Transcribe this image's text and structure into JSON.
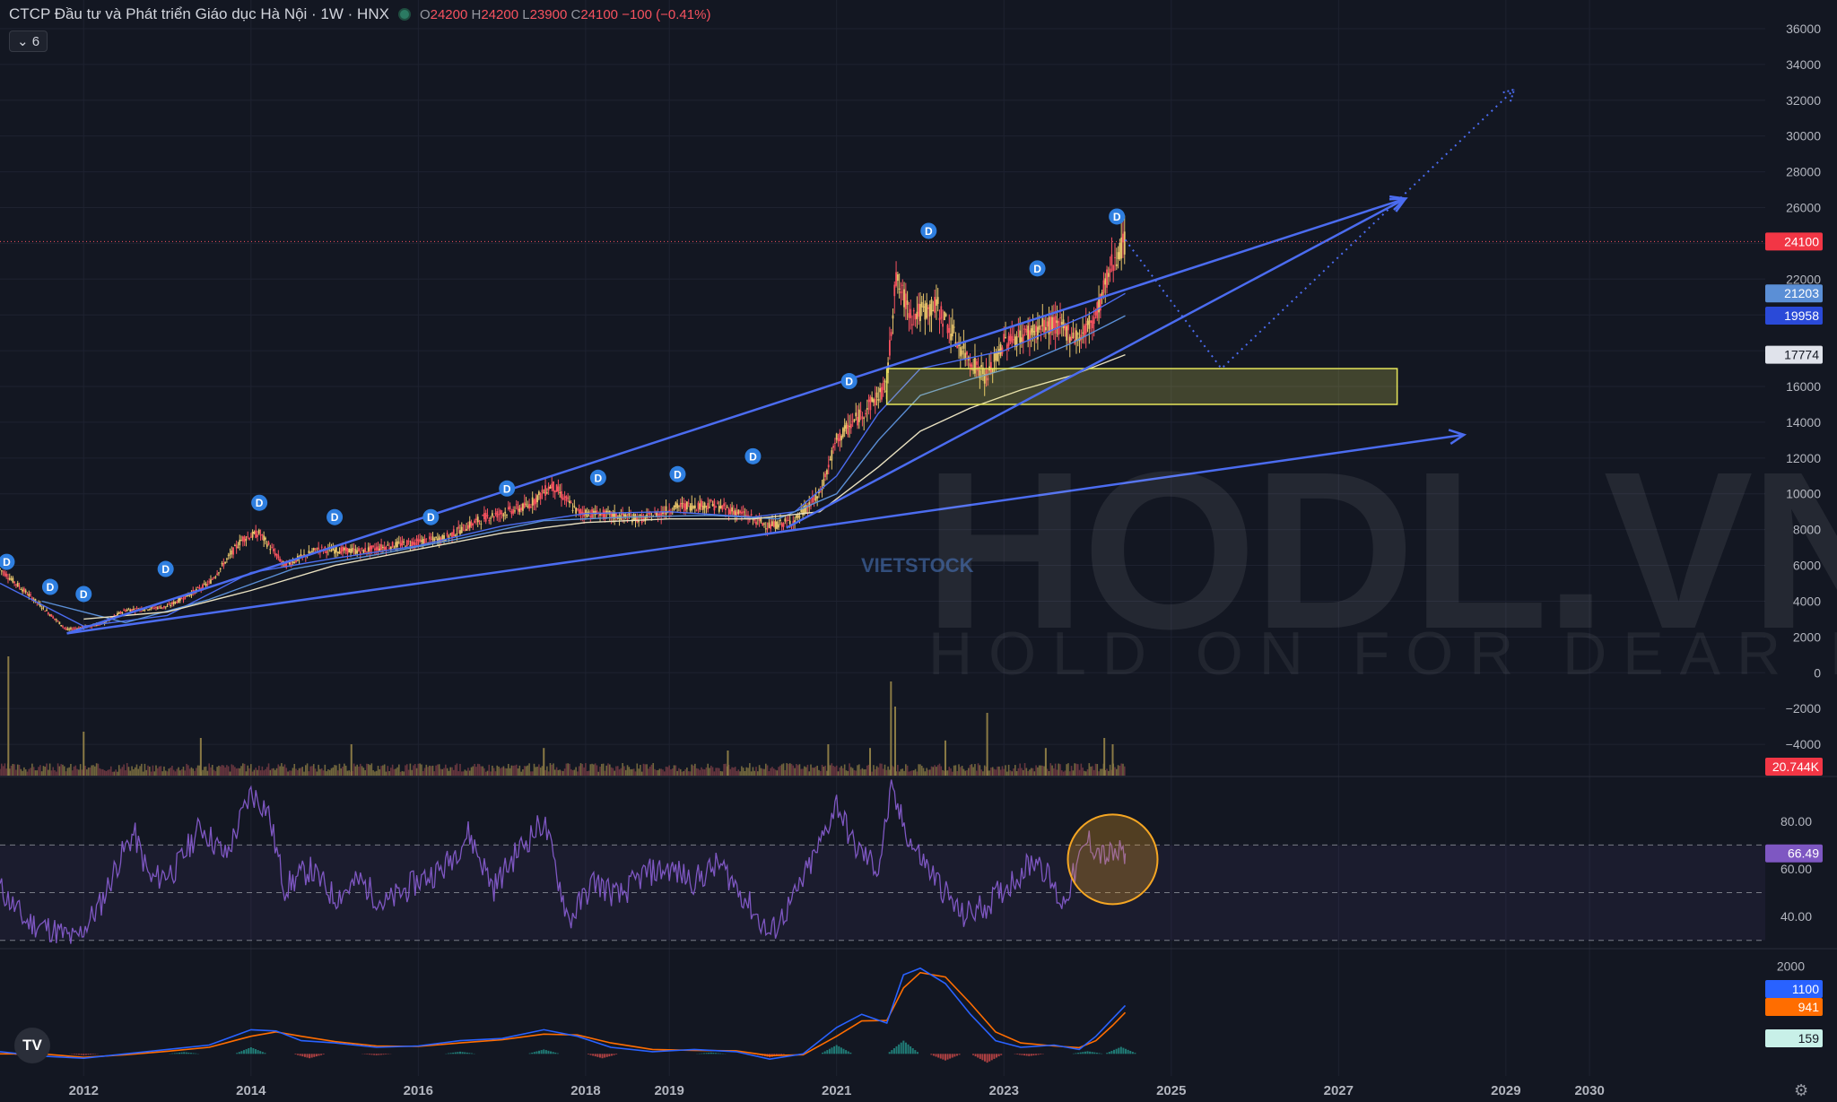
{
  "header": {
    "symbol": "CTCP Đầu tư và Phát triển Giáo dục Hà Nội · 1W · HNX",
    "o_label": "O",
    "o": "24200",
    "h_label": "H",
    "h": "24200",
    "l_label": "L",
    "l": "23900",
    "c_label": "C",
    "c": "24100",
    "change": "−100 (−0.41%)",
    "indicator_toggle": "⌄ 6"
  },
  "watermarks": {
    "brand": "HODL.VN",
    "tagline": "HOLD ON FOR DEAR LIFE",
    "source": "VIETSTOCK"
  },
  "icons": [
    "tradingview-logo-icon",
    "settings-gear-icon"
  ],
  "colors": {
    "background": "#131722",
    "up": "#e8c56a",
    "down": "#f7525f",
    "trend": "#4b6cf0",
    "rsi": "#7e57c2",
    "macd": "#2962ff",
    "signal": "#ff6d00",
    "zone": "#e6e65a",
    "circle": "#f5a623"
  },
  "chart_data": {
    "type": "line",
    "x_ticks": [
      "2012",
      "2014",
      "2016",
      "2018",
      "2019",
      "2021",
      "2023",
      "2025",
      "2027",
      "2029",
      "2030"
    ],
    "x_tick_years": [
      2012,
      2014,
      2016,
      2018,
      2019,
      2021,
      2023,
      2025,
      2027,
      2029,
      2030
    ],
    "x_range": [
      2011.0,
      2032.1
    ],
    "price": {
      "y_ticks": [
        36000,
        34000,
        32000,
        30000,
        28000,
        26000,
        24000,
        22000,
        20000,
        18000,
        16000,
        14000,
        12000,
        10000,
        8000,
        6000,
        4000,
        2000,
        0,
        -2000,
        -4000
      ],
      "y_tick_labels": [
        "36000",
        "34000",
        "32000",
        "30000",
        "28000",
        "26000",
        "",
        "22000",
        "",
        "",
        "16000",
        "14000",
        "12000",
        "10000",
        "8000",
        "6000",
        "4000",
        "2000",
        "0",
        "−2000",
        "−4000"
      ],
      "y_range": [
        -6000,
        36700
      ],
      "close_path": [
        [
          2011.0,
          5800
        ],
        [
          2011.5,
          3700
        ],
        [
          2011.8,
          2400
        ],
        [
          2012.2,
          2700
        ],
        [
          2012.5,
          3500
        ],
        [
          2013.0,
          3700
        ],
        [
          2013.5,
          5000
        ],
        [
          2013.9,
          7500
        ],
        [
          2014.1,
          7800
        ],
        [
          2014.4,
          6000
        ],
        [
          2014.8,
          6900
        ],
        [
          2015.3,
          6800
        ],
        [
          2015.8,
          7200
        ],
        [
          2016.3,
          7500
        ],
        [
          2016.8,
          8700
        ],
        [
          2017.3,
          9300
        ],
        [
          2017.6,
          10500
        ],
        [
          2017.9,
          9000
        ],
        [
          2018.3,
          8800
        ],
        [
          2018.7,
          8600
        ],
        [
          2019.1,
          9300
        ],
        [
          2019.5,
          9400
        ],
        [
          2019.8,
          9000
        ],
        [
          2020.2,
          8200
        ],
        [
          2020.5,
          8500
        ],
        [
          2020.8,
          10000
        ],
        [
          2021.0,
          13000
        ],
        [
          2021.3,
          14500
        ],
        [
          2021.6,
          16000
        ],
        [
          2021.7,
          22000
        ],
        [
          2021.9,
          20000
        ],
        [
          2022.2,
          20500
        ],
        [
          2022.5,
          18000
        ],
        [
          2022.8,
          16500
        ],
        [
          2023.0,
          18500
        ],
        [
          2023.3,
          19000
        ],
        [
          2023.6,
          19500
        ],
        [
          2023.9,
          18700
        ],
        [
          2024.1,
          20000
        ],
        [
          2024.3,
          23000
        ],
        [
          2024.45,
          24100
        ]
      ],
      "ma_series": [
        {
          "values": [
            [
              2011.0,
              5000
            ],
            [
              2012.0,
              2600
            ],
            [
              2013.0,
              3200
            ],
            [
              2014.0,
              5600
            ],
            [
              2015.0,
              6400
            ],
            [
              2016.0,
              7100
            ],
            [
              2017.0,
              8200
            ],
            [
              2018.0,
              8900
            ],
            [
              2019.0,
              9000
            ],
            [
              2020.0,
              8700
            ],
            [
              2020.5,
              9000
            ],
            [
              2021.0,
              11000
            ],
            [
              2021.5,
              14500
            ],
            [
              2022.0,
              17000
            ],
            [
              2022.5,
              17500
            ],
            [
              2023.0,
              18000
            ],
            [
              2023.5,
              19000
            ],
            [
              2024.0,
              20000
            ],
            [
              2024.45,
              21203
            ]
          ]
        },
        {
          "values": [
            [
              2011.5,
              4000
            ],
            [
              2012.5,
              2800
            ],
            [
              2013.5,
              4100
            ],
            [
              2014.5,
              5800
            ],
            [
              2015.5,
              6600
            ],
            [
              2016.5,
              7500
            ],
            [
              2017.5,
              8500
            ],
            [
              2018.5,
              8700
            ],
            [
              2019.5,
              8800
            ],
            [
              2020.3,
              8600
            ],
            [
              2021.0,
              10000
            ],
            [
              2021.5,
              13000
            ],
            [
              2022.0,
              15500
            ],
            [
              2022.6,
              16400
            ],
            [
              2023.2,
              17200
            ],
            [
              2023.8,
              18400
            ],
            [
              2024.45,
              19958
            ]
          ]
        },
        {
          "values": [
            [
              2012.0,
              3000
            ],
            [
              2013.0,
              3400
            ],
            [
              2014.0,
              4600
            ],
            [
              2015.0,
              6000
            ],
            [
              2016.0,
              6900
            ],
            [
              2017.0,
              7800
            ],
            [
              2018.0,
              8400
            ],
            [
              2019.0,
              8600
            ],
            [
              2020.0,
              8600
            ],
            [
              2020.8,
              9000
            ],
            [
              2021.5,
              11500
            ],
            [
              2022.0,
              13500
            ],
            [
              2022.6,
              14800
            ],
            [
              2023.2,
              15800
            ],
            [
              2023.8,
              16600
            ],
            [
              2024.45,
              17774
            ]
          ]
        }
      ],
      "last_price": {
        "value": 24100,
        "label": "24100"
      },
      "price_labels": [
        {
          "value": 21203,
          "label": "21203"
        },
        {
          "value": 19958,
          "label": "19958"
        },
        {
          "value": 17774,
          "label": "17774"
        }
      ],
      "dividend_marks": {
        "symbol": "D",
        "points": [
          [
            2011.08,
            6200
          ],
          [
            2011.6,
            4800
          ],
          [
            2012.0,
            4400
          ],
          [
            2012.98,
            5800
          ],
          [
            2014.1,
            9500
          ],
          [
            2015.0,
            8700
          ],
          [
            2016.15,
            8700
          ],
          [
            2017.06,
            10300
          ],
          [
            2018.15,
            10900
          ],
          [
            2019.1,
            11100
          ],
          [
            2020.0,
            12100
          ],
          [
            2021.15,
            16300
          ],
          [
            2022.1,
            24700
          ],
          [
            2023.4,
            22600
          ],
          [
            2024.35,
            25500
          ]
        ]
      },
      "support_zone": {
        "x": [
          2021.6,
          2027.7
        ],
        "y": [
          15000,
          17000
        ]
      },
      "trend_arrows": [
        [
          [
            2011.8,
            2200
          ],
          [
            2027.8,
            26500
          ]
        ],
        [
          [
            2011.8,
            2200
          ],
          [
            2028.5,
            13300
          ]
        ],
        [
          [
            2020.4,
            8100
          ],
          [
            2027.8,
            26500
          ]
        ]
      ],
      "projection_path": [
        [
          2024.45,
          24200
        ],
        [
          2025.6,
          17000
        ],
        [
          2029.1,
          32600
        ]
      ]
    },
    "volume": {
      "last_label": "20.744K",
      "spikes": [
        [
          2011.1,
          0.95
        ],
        [
          2021.65,
          0.75
        ],
        [
          2021.7,
          0.55
        ],
        [
          2022.8,
          0.5
        ],
        [
          2024.2,
          0.3
        ],
        [
          2024.3,
          0.25
        ],
        [
          2012.0,
          0.35
        ],
        [
          2013.4,
          0.3
        ],
        [
          2015.2,
          0.25
        ],
        [
          2017.5,
          0.22
        ],
        [
          2019.7,
          0.2
        ],
        [
          2020.9,
          0.25
        ],
        [
          2021.4,
          0.22
        ],
        [
          2022.3,
          0.28
        ],
        [
          2023.5,
          0.22
        ]
      ]
    },
    "rsi": {
      "y_ticks": [
        80,
        60,
        40
      ],
      "y_tick_labels": [
        "80.00",
        "60.00",
        "40.00"
      ],
      "bands": [
        70,
        50,
        30
      ],
      "y_range": [
        25,
        98
      ],
      "last": {
        "value": 66.49,
        "label": "66.49"
      },
      "values": [
        [
          2011.0,
          52
        ],
        [
          2011.3,
          38
        ],
        [
          2011.6,
          35
        ],
        [
          2011.9,
          30
        ],
        [
          2012.2,
          45
        ],
        [
          2012.4,
          62
        ],
        [
          2012.6,
          75
        ],
        [
          2012.8,
          55
        ],
        [
          2013.1,
          60
        ],
        [
          2013.4,
          78
        ],
        [
          2013.7,
          65
        ],
        [
          2014.0,
          92
        ],
        [
          2014.2,
          85
        ],
        [
          2014.4,
          52
        ],
        [
          2014.7,
          60
        ],
        [
          2015.0,
          48
        ],
        [
          2015.3,
          55
        ],
        [
          2015.6,
          45
        ],
        [
          2016.0,
          55
        ],
        [
          2016.3,
          60
        ],
        [
          2016.6,
          75
        ],
        [
          2016.9,
          52
        ],
        [
          2017.2,
          68
        ],
        [
          2017.5,
          80
        ],
        [
          2017.8,
          38
        ],
        [
          2018.1,
          55
        ],
        [
          2018.4,
          48
        ],
        [
          2018.7,
          58
        ],
        [
          2019.0,
          60
        ],
        [
          2019.3,
          55
        ],
        [
          2019.6,
          62
        ],
        [
          2019.9,
          48
        ],
        [
          2020.2,
          32
        ],
        [
          2020.5,
          48
        ],
        [
          2020.8,
          70
        ],
        [
          2021.0,
          88
        ],
        [
          2021.2,
          70
        ],
        [
          2021.5,
          60
        ],
        [
          2021.65,
          92
        ],
        [
          2021.9,
          70
        ],
        [
          2022.2,
          55
        ],
        [
          2022.5,
          40
        ],
        [
          2022.8,
          45
        ],
        [
          2023.1,
          55
        ],
        [
          2023.4,
          65
        ],
        [
          2023.7,
          45
        ],
        [
          2024.0,
          72
        ],
        [
          2024.2,
          65
        ],
        [
          2024.45,
          66.49
        ]
      ],
      "highlight": {
        "x": 2024.3,
        "y": 64
      }
    },
    "macd": {
      "y_ticks": [
        2000
      ],
      "y_tick_labels": [
        "2000"
      ],
      "y_range": [
        -300,
        2150
      ],
      "labels": [
        {
          "value": 1100,
          "label": "1100"
        },
        {
          "value": 941,
          "label": "941"
        },
        {
          "value": 159,
          "label": "159"
        }
      ],
      "macd_line": [
        [
          2011.0,
          50
        ],
        [
          2011.5,
          -50
        ],
        [
          2012.0,
          -100
        ],
        [
          2012.5,
          0
        ],
        [
          2013.0,
          100
        ],
        [
          2013.5,
          200
        ],
        [
          2014.0,
          550
        ],
        [
          2014.3,
          520
        ],
        [
          2014.6,
          300
        ],
        [
          2015.0,
          250
        ],
        [
          2015.5,
          150
        ],
        [
          2016.0,
          180
        ],
        [
          2016.5,
          300
        ],
        [
          2017.0,
          350
        ],
        [
          2017.5,
          550
        ],
        [
          2017.9,
          400
        ],
        [
          2018.3,
          150
        ],
        [
          2018.8,
          50
        ],
        [
          2019.3,
          100
        ],
        [
          2019.8,
          50
        ],
        [
          2020.2,
          -120
        ],
        [
          2020.6,
          0
        ],
        [
          2021.0,
          600
        ],
        [
          2021.3,
          900
        ],
        [
          2021.6,
          700
        ],
        [
          2021.8,
          1800
        ],
        [
          2022.0,
          1950
        ],
        [
          2022.3,
          1600
        ],
        [
          2022.6,
          900
        ],
        [
          2022.9,
          300
        ],
        [
          2023.2,
          150
        ],
        [
          2023.6,
          200
        ],
        [
          2023.9,
          100
        ],
        [
          2024.1,
          400
        ],
        [
          2024.3,
          800
        ],
        [
          2024.45,
          1100
        ]
      ],
      "signal_line": [
        [
          2011.0,
          0
        ],
        [
          2011.5,
          0
        ],
        [
          2012.0,
          -80
        ],
        [
          2012.5,
          -20
        ],
        [
          2013.0,
          60
        ],
        [
          2013.5,
          150
        ],
        [
          2014.0,
          400
        ],
        [
          2014.3,
          500
        ],
        [
          2014.6,
          400
        ],
        [
          2015.0,
          280
        ],
        [
          2015.5,
          180
        ],
        [
          2016.0,
          170
        ],
        [
          2016.5,
          250
        ],
        [
          2017.0,
          320
        ],
        [
          2017.5,
          450
        ],
        [
          2017.9,
          430
        ],
        [
          2018.3,
          250
        ],
        [
          2018.8,
          100
        ],
        [
          2019.3,
          80
        ],
        [
          2019.8,
          70
        ],
        [
          2020.2,
          -40
        ],
        [
          2020.6,
          -20
        ],
        [
          2021.0,
          400
        ],
        [
          2021.3,
          750
        ],
        [
          2021.6,
          760
        ],
        [
          2021.8,
          1500
        ],
        [
          2022.0,
          1850
        ],
        [
          2022.3,
          1750
        ],
        [
          2022.6,
          1150
        ],
        [
          2022.9,
          500
        ],
        [
          2023.2,
          250
        ],
        [
          2023.6,
          180
        ],
        [
          2023.9,
          140
        ],
        [
          2024.1,
          300
        ],
        [
          2024.3,
          650
        ],
        [
          2024.45,
          941
        ]
      ],
      "histogram": [
        [
          2011.3,
          -50
        ],
        [
          2012.0,
          -30
        ],
        [
          2013.2,
          40
        ],
        [
          2014.0,
          150
        ],
        [
          2014.7,
          -100
        ],
        [
          2015.5,
          -30
        ],
        [
          2016.5,
          50
        ],
        [
          2017.5,
          100
        ],
        [
          2018.2,
          -100
        ],
        [
          2019.5,
          30
        ],
        [
          2020.2,
          -80
        ],
        [
          2021.0,
          200
        ],
        [
          2021.8,
          300
        ],
        [
          2022.3,
          -150
        ],
        [
          2022.8,
          -200
        ],
        [
          2023.3,
          -50
        ],
        [
          2024.0,
          60
        ],
        [
          2024.4,
          159
        ]
      ]
    }
  }
}
